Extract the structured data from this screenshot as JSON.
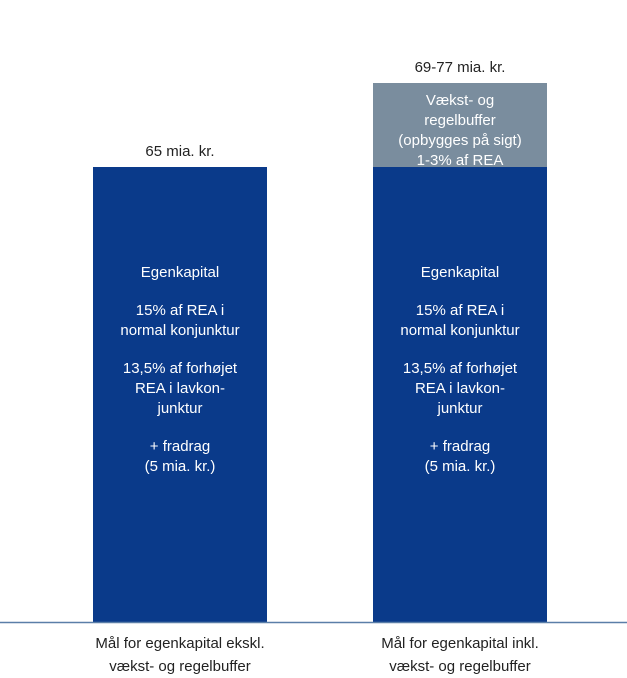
{
  "colors": {
    "equity": "#0a3a8a",
    "buffer": "#7a8d9e",
    "baseline": "#5a7ea8",
    "text": "#222222"
  },
  "chart_data": {
    "type": "bar",
    "stacked": true,
    "categories": [
      "Mål for egenkapital ekskl.\nvækst- og regelbuffer",
      "Mål for egenkapital inkl.\nvækst- og regelbuffer"
    ],
    "totals_labels": [
      "65 mia. kr.",
      "69-77 mia. kr."
    ],
    "series": [
      {
        "values": [
          65,
          65
        ],
        "color": "#0a3a8a",
        "label_lines": [
          "Egenkapital",
          "15% af REA i\nnormal konjunktur",
          "13,5% af forhøjet\nREA i lavkon-\njunktur",
          "+ fradrag\n(5 mia. kr.)"
        ]
      },
      {
        "values": [
          0,
          12
        ],
        "color": "#7a8d9e",
        "label": "Vækst- og\nregelbuffer\n(opbygges på sigt)\n1-3% af REA"
      }
    ],
    "ylim": [
      0,
      77
    ]
  }
}
